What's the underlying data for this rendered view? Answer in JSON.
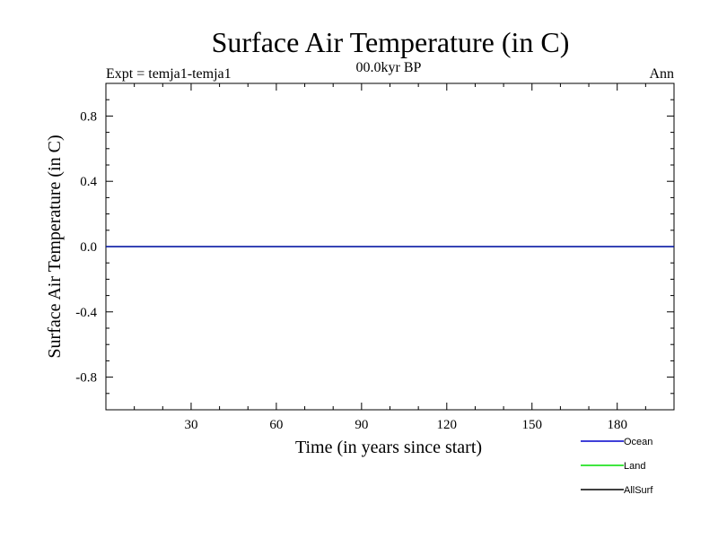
{
  "chart_data": {
    "type": "line",
    "title": "Surface Air Temperature (in C)",
    "subtitle_left": "Expt = temja1-temja1",
    "subtitle_center": "00.0kyr BP",
    "subtitle_right": "Ann",
    "xlabel": "Time (in years since start)",
    "ylabel": "Surface Air Temperature (in C)",
    "xlim": [
      0,
      200
    ],
    "ylim": [
      -1.0,
      1.0
    ],
    "xticks": [
      30,
      60,
      90,
      120,
      150,
      180
    ],
    "yticks": [
      0.8,
      0.4,
      0.0,
      -0.4,
      -0.8
    ],
    "ytick_labels": [
      "0.8",
      "0.4",
      "0.0",
      "-0.4",
      "-0.8"
    ],
    "x": [
      0,
      200
    ],
    "series": [
      {
        "name": "Ocean",
        "color": "#0000cc",
        "values": [
          0.0,
          0.0
        ]
      },
      {
        "name": "Land",
        "color": "#00dd00",
        "values": [
          0.0,
          0.0
        ]
      },
      {
        "name": "AllSurf",
        "color": "#000000",
        "values": [
          0.0,
          0.0
        ]
      }
    ],
    "legend_position": "bottom-right"
  }
}
